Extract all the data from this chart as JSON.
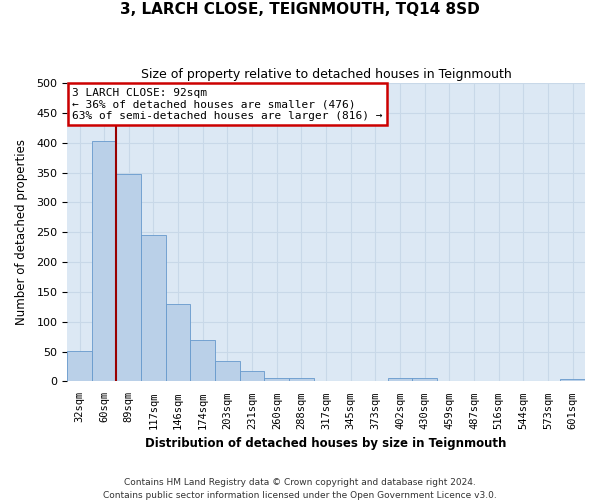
{
  "title": "3, LARCH CLOSE, TEIGNMOUTH, TQ14 8SD",
  "subtitle": "Size of property relative to detached houses in Teignmouth",
  "xlabel": "Distribution of detached houses by size in Teignmouth",
  "ylabel": "Number of detached properties",
  "footer_line1": "Contains HM Land Registry data © Crown copyright and database right 2024.",
  "footer_line2": "Contains public sector information licensed under the Open Government Licence v3.0.",
  "bin_labels": [
    "32sqm",
    "60sqm",
    "89sqm",
    "117sqm",
    "146sqm",
    "174sqm",
    "203sqm",
    "231sqm",
    "260sqm",
    "288sqm",
    "317sqm",
    "345sqm",
    "373sqm",
    "402sqm",
    "430sqm",
    "459sqm",
    "487sqm",
    "516sqm",
    "544sqm",
    "573sqm",
    "601sqm"
  ],
  "bar_values": [
    51,
    403,
    347,
    246,
    130,
    70,
    35,
    18,
    6,
    5,
    1,
    0,
    0,
    5,
    5,
    0,
    0,
    0,
    0,
    0,
    4
  ],
  "bar_color": "#bad0e8",
  "bar_edge_color": "#6699cc",
  "grid_color": "#c8d8e8",
  "background_color": "#dce8f4",
  "vline_color": "#990000",
  "vline_bin_index": 2,
  "annotation_text_line1": "3 LARCH CLOSE: 92sqm",
  "annotation_text_line2": "← 36% of detached houses are smaller (476)",
  "annotation_text_line3": "63% of semi-detached houses are larger (816) →",
  "annotation_box_color": "#ffffff",
  "annotation_box_edge_color": "#cc0000",
  "ylim": [
    0,
    500
  ],
  "yticks": [
    0,
    50,
    100,
    150,
    200,
    250,
    300,
    350,
    400,
    450,
    500
  ]
}
